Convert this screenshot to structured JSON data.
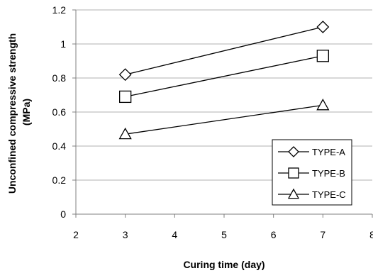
{
  "chart_data": {
    "type": "line",
    "title": "",
    "xlabel": "Curing time (day)",
    "ylabel_lines": [
      "Unconfined compressive strength",
      "(MPa)"
    ],
    "xlim": [
      2,
      8
    ],
    "ylim": [
      0,
      1.2
    ],
    "x_ticks": [
      2,
      3,
      4,
      5,
      6,
      7,
      8
    ],
    "y_ticks": [
      "0",
      "0.2",
      "0.4",
      "0.6",
      "0.8",
      "1",
      "1.2"
    ],
    "grid": "horizontal",
    "legend_position": "bottom-right",
    "series": [
      {
        "name": "TYPE-A",
        "marker": "diamond",
        "x": [
          3,
          7
        ],
        "y": [
          0.82,
          1.1
        ]
      },
      {
        "name": "TYPE-B",
        "marker": "square",
        "x": [
          3,
          7
        ],
        "y": [
          0.69,
          0.93
        ]
      },
      {
        "name": "TYPE-C",
        "marker": "triangle",
        "x": [
          3,
          7
        ],
        "y": [
          0.47,
          0.64
        ]
      }
    ],
    "colors": {
      "line": "#000000",
      "grid": "#b0b0b0",
      "axis": "#808080"
    }
  }
}
